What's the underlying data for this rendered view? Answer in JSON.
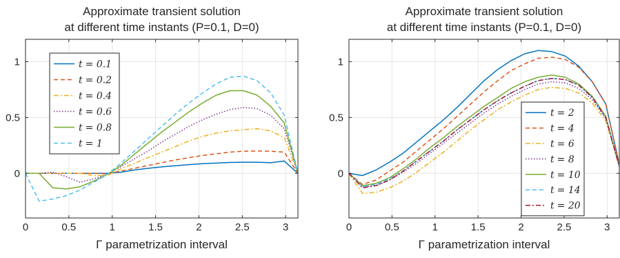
{
  "chart_data": [
    {
      "type": "line",
      "title": [
        "Approximate transient solution",
        "at different time instants (P=0.1, D=0)"
      ],
      "xlabel": "Γ parametrization interval",
      "ylabel": "",
      "xlim": [
        0,
        3.1416
      ],
      "ylim": [
        -0.4,
        1.2
      ],
      "xticks": [
        "0",
        "0.5",
        "1",
        "1.5",
        "2",
        "2.5",
        "3"
      ],
      "yticks": [
        "0",
        "0.5",
        "1"
      ],
      "grid": true,
      "legend_position": "top-left",
      "x": [
        0,
        0.1571,
        0.3142,
        0.4712,
        0.6283,
        0.7854,
        0.9425,
        1.0996,
        1.2566,
        1.4137,
        1.5708,
        1.7279,
        1.885,
        2.042,
        2.1991,
        2.3562,
        2.5133,
        2.6704,
        2.8274,
        2.9845,
        3.1416
      ],
      "series": [
        {
          "name": "t = 0.1",
          "legend_var": "t",
          "legend_val": "= 0.1",
          "color": "#0072BD",
          "dash": "solid",
          "values": [
            0,
            0,
            0,
            0,
            0,
            0,
            0,
            0.01,
            0.03,
            0.045,
            0.058,
            0.068,
            0.078,
            0.086,
            0.092,
            0.097,
            0.1,
            0.1,
            0.095,
            0.11,
            0
          ]
        },
        {
          "name": "t = 0.2",
          "legend_var": "t",
          "legend_val": "= 0.2",
          "color": "#D95319",
          "dash": "dashed",
          "values": [
            0,
            0,
            0,
            0,
            0,
            0,
            -0.005,
            0.02,
            0.045,
            0.07,
            0.095,
            0.12,
            0.14,
            0.16,
            0.175,
            0.19,
            0.198,
            0.2,
            0.198,
            0.19,
            0
          ]
        },
        {
          "name": "t = 0.4",
          "legend_var": "t",
          "legend_val": "= 0.4",
          "color": "#EDB120",
          "dash": "dashdot",
          "values": [
            0,
            0,
            0,
            0,
            0,
            -0.02,
            -0.02,
            0.04,
            0.09,
            0.14,
            0.19,
            0.24,
            0.29,
            0.33,
            0.36,
            0.38,
            0.39,
            0.4,
            0.38,
            0.32,
            0
          ]
        },
        {
          "name": "t = 0.6",
          "legend_var": "t",
          "legend_val": "= 0.6",
          "color": "#7E2F8E",
          "dash": "dotted",
          "values": [
            0,
            0,
            0.01,
            -0.03,
            -0.08,
            -0.05,
            -0.01,
            0.06,
            0.13,
            0.2,
            0.28,
            0.35,
            0.42,
            0.48,
            0.53,
            0.57,
            0.59,
            0.58,
            0.52,
            0.4,
            0
          ]
        },
        {
          "name": "t = 0.8",
          "legend_var": "t",
          "legend_val": "= 0.8",
          "color": "#77AC30",
          "dash": "solid",
          "values": [
            0,
            0,
            -0.13,
            -0.14,
            -0.12,
            -0.07,
            -0.01,
            0.07,
            0.17,
            0.27,
            0.37,
            0.46,
            0.55,
            0.63,
            0.7,
            0.74,
            0.74,
            0.7,
            0.6,
            0.45,
            0
          ]
        },
        {
          "name": "t = 1",
          "legend_var": "t",
          "legend_val": "= 1",
          "color": "#4DBEEE",
          "dash": "dashed",
          "values": [
            0,
            -0.25,
            -0.23,
            -0.2,
            -0.15,
            -0.08,
            -0.01,
            0.09,
            0.2,
            0.31,
            0.42,
            0.53,
            0.63,
            0.72,
            0.8,
            0.86,
            0.87,
            0.83,
            0.72,
            0.52,
            0
          ]
        }
      ]
    },
    {
      "type": "line",
      "title": [
        "Approximate transient solution",
        "at different time instants (P=0.1, D=0)"
      ],
      "xlabel": "Γ parametrization interval",
      "ylabel": "",
      "xlim": [
        0,
        3.1416
      ],
      "ylim": [
        -0.4,
        1.2
      ],
      "xticks": [
        "0",
        "0.5",
        "1",
        "1.5",
        "2",
        "2.5",
        "3"
      ],
      "yticks": [
        "0",
        "0.5",
        "1"
      ],
      "grid": true,
      "legend_position": "bottom-right",
      "x": [
        0,
        0.1571,
        0.3142,
        0.4712,
        0.6283,
        0.7854,
        0.9425,
        1.0996,
        1.2566,
        1.4137,
        1.5708,
        1.7279,
        1.885,
        2.042,
        2.1991,
        2.3562,
        2.5133,
        2.6704,
        2.8274,
        2.9845,
        3.1416
      ],
      "series": [
        {
          "name": "t = 2",
          "legend_var": "t",
          "legend_val": "= 2",
          "color": "#0072BD",
          "dash": "solid",
          "values": [
            0,
            -0.02,
            0.03,
            0.1,
            0.18,
            0.28,
            0.38,
            0.48,
            0.59,
            0.71,
            0.83,
            0.93,
            1.01,
            1.07,
            1.1,
            1.09,
            1.05,
            0.96,
            0.82,
            0.62,
            0.08
          ]
        },
        {
          "name": "t = 4",
          "legend_var": "t",
          "legend_val": "= 4",
          "color": "#D95319",
          "dash": "dashed",
          "values": [
            0,
            -0.1,
            -0.06,
            0.02,
            0.1,
            0.2,
            0.3,
            0.4,
            0.51,
            0.62,
            0.73,
            0.83,
            0.92,
            0.98,
            1.03,
            1.04,
            1.02,
            0.95,
            0.82,
            0.62,
            0.08
          ]
        },
        {
          "name": "t = 6",
          "legend_var": "t",
          "legend_val": "= 6",
          "color": "#EDB120",
          "dash": "dashdot",
          "values": [
            0,
            -0.18,
            -0.17,
            -0.13,
            -0.07,
            0.01,
            0.1,
            0.19,
            0.29,
            0.39,
            0.48,
            0.57,
            0.64,
            0.7,
            0.75,
            0.77,
            0.76,
            0.72,
            0.63,
            0.47,
            0.06
          ]
        },
        {
          "name": "t = 8",
          "legend_var": "t",
          "legend_val": "= 8",
          "color": "#7E2F8E",
          "dash": "dotted",
          "values": [
            0,
            -0.12,
            -0.11,
            -0.06,
            0.01,
            0.09,
            0.18,
            0.27,
            0.36,
            0.45,
            0.54,
            0.62,
            0.69,
            0.75,
            0.8,
            0.82,
            0.81,
            0.76,
            0.66,
            0.49,
            0.06
          ]
        },
        {
          "name": "t = 10",
          "legend_var": "t",
          "legend_val": "= 10",
          "color": "#77AC30",
          "dash": "solid",
          "values": [
            0,
            -0.11,
            -0.09,
            -0.04,
            0.04,
            0.13,
            0.23,
            0.32,
            0.42,
            0.51,
            0.6,
            0.68,
            0.76,
            0.82,
            0.86,
            0.88,
            0.86,
            0.8,
            0.69,
            0.51,
            0.06
          ]
        },
        {
          "name": "t = 14",
          "legend_var": "t",
          "legend_val": "= 14",
          "color": "#4DBEEE",
          "dash": "dashed",
          "values": [
            0,
            -0.12,
            -0.1,
            -0.05,
            0.02,
            0.11,
            0.2,
            0.29,
            0.39,
            0.48,
            0.57,
            0.65,
            0.72,
            0.78,
            0.83,
            0.85,
            0.84,
            0.79,
            0.68,
            0.5,
            0.06
          ]
        },
        {
          "name": "t = 20",
          "legend_var": "t",
          "legend_val": "= 20",
          "color": "#A2142F",
          "dash": "dashdot",
          "values": [
            0,
            -0.13,
            -0.11,
            -0.06,
            0.02,
            0.11,
            0.2,
            0.29,
            0.39,
            0.48,
            0.57,
            0.65,
            0.72,
            0.78,
            0.83,
            0.85,
            0.84,
            0.79,
            0.68,
            0.5,
            0.06
          ]
        }
      ]
    }
  ]
}
